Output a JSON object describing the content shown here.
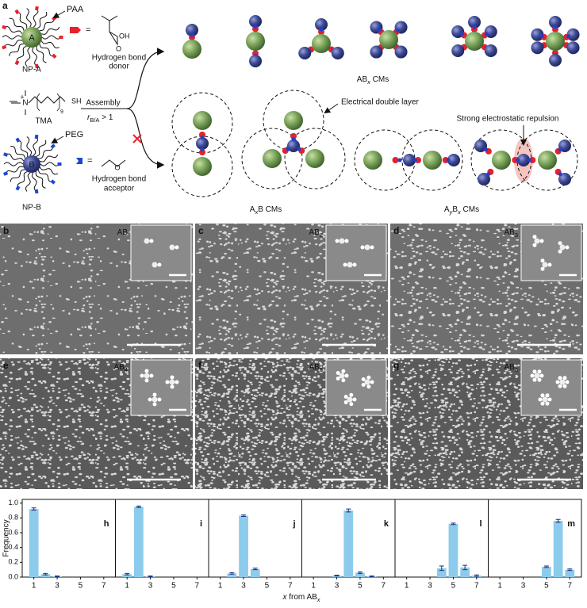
{
  "schematic": {
    "panel": "a",
    "np_a": {
      "core": "A",
      "ligand": "PAA",
      "name": "NP-A"
    },
    "donor": {
      "equals": "=",
      "o": "O",
      "oh": "OH",
      "line1": "Hydrogen bond",
      "line2": "donor"
    },
    "tma": {
      "name": "TMA",
      "n": "N",
      "plus": "+",
      "sh": "SH",
      "repeat": "9"
    },
    "assembly": "Assembly",
    "ratio": {
      "r": "r",
      "sub": "B/A",
      "rest": " > 1"
    },
    "np_b": {
      "core": "B",
      "ligand": "PEG",
      "name": "NP-B"
    },
    "acceptor": {
      "equals": "=",
      "o": "O",
      "line1": "Hydrogen bond",
      "line2": "acceptor"
    },
    "abx_label": {
      "pre": "AB",
      "sub": "x",
      "post": " CMs"
    },
    "edl": "Electrical double layer",
    "repulsion": "Strong electrostatic repulsion",
    "axb_label": {
      "pre": "A",
      "sub": "x",
      "post": "B CMs"
    },
    "aybx_label": {
      "a": "A",
      "y": "y",
      "b": "B",
      "x": "x",
      "post": " CMs"
    }
  },
  "micrographs": [
    {
      "panel": "b",
      "label": {
        "text": "AB"
      }
    },
    {
      "panel": "c",
      "label": {
        "text": "AB",
        "sub": "2"
      }
    },
    {
      "panel": "d",
      "label": {
        "text": "AB",
        "sub": "3"
      }
    },
    {
      "panel": "e",
      "label": {
        "text": "AB",
        "sub": "4"
      }
    },
    {
      "panel": "f",
      "label": {
        "text": "AB",
        "sub": "5"
      }
    },
    {
      "panel": "g",
      "label": {
        "text": "AB",
        "sub": "6"
      }
    }
  ],
  "x_label": {
    "var": "x",
    "text": " from AB",
    "sub": "x"
  },
  "chart_data": [
    {
      "type": "bar",
      "panel": "h",
      "y_label": "Frequency",
      "x": [
        1,
        2,
        3
      ],
      "values": [
        0.92,
        0.04,
        0.01
      ],
      "errors": [
        0.015,
        0.01,
        0.005
      ],
      "color": "#8ccbec",
      "xlim": [
        0,
        8
      ],
      "xticks": [
        1,
        3,
        5,
        7
      ],
      "ylim": [
        0,
        1.05
      ],
      "yticks": [
        {
          "value": 0,
          "label": "0.0"
        },
        0.2,
        0.4,
        0.6,
        0.8,
        {
          "value": 1,
          "label": "1.0"
        }
      ]
    },
    {
      "type": "bar",
      "panel": "i",
      "x": [
        1,
        2,
        3
      ],
      "values": [
        0.04,
        0.95,
        0.01
      ],
      "errors": [
        0.01,
        0.01,
        0.005
      ],
      "color": "#8ccbec",
      "xlim": [
        0,
        8
      ],
      "xticks": [
        1,
        3,
        5,
        7
      ],
      "ylim": [
        0,
        1.05
      ]
    },
    {
      "type": "bar",
      "panel": "j",
      "x": [
        2,
        3,
        4
      ],
      "values": [
        0.05,
        0.83,
        0.11
      ],
      "errors": [
        0.01,
        0.01,
        0.01
      ],
      "color": "#8ccbec",
      "xlim": [
        0,
        8
      ],
      "xticks": [
        1,
        3,
        5,
        7
      ],
      "ylim": [
        0,
        1.05
      ]
    },
    {
      "type": "bar",
      "panel": "k",
      "x": [
        3,
        4,
        5,
        6
      ],
      "values": [
        0.02,
        0.9,
        0.06,
        0.01
      ],
      "errors": [
        0.005,
        0.02,
        0.01,
        0.005
      ],
      "color": "#8ccbec",
      "xlim": [
        0,
        8
      ],
      "xticks": [
        1,
        3,
        5,
        7
      ],
      "ylim": [
        0,
        1.05
      ]
    },
    {
      "type": "bar",
      "panel": "l",
      "x": [
        4,
        5,
        6,
        7
      ],
      "values": [
        0.12,
        0.72,
        0.13,
        0.02
      ],
      "errors": [
        0.03,
        0.01,
        0.03,
        0.01
      ],
      "color": "#8ccbec",
      "xlim": [
        0,
        8
      ],
      "xticks": [
        1,
        3,
        5,
        7
      ],
      "ylim": [
        0,
        1.05
      ]
    },
    {
      "type": "bar",
      "panel": "m",
      "x": [
        5,
        6,
        7
      ],
      "values": [
        0.14,
        0.76,
        0.1
      ],
      "errors": [
        0.01,
        0.02,
        0.01
      ],
      "color": "#8ccbec",
      "xlim": [
        0,
        8
      ],
      "xticks": [
        1,
        3,
        5,
        7
      ],
      "ylim": [
        0,
        1.05
      ]
    }
  ]
}
